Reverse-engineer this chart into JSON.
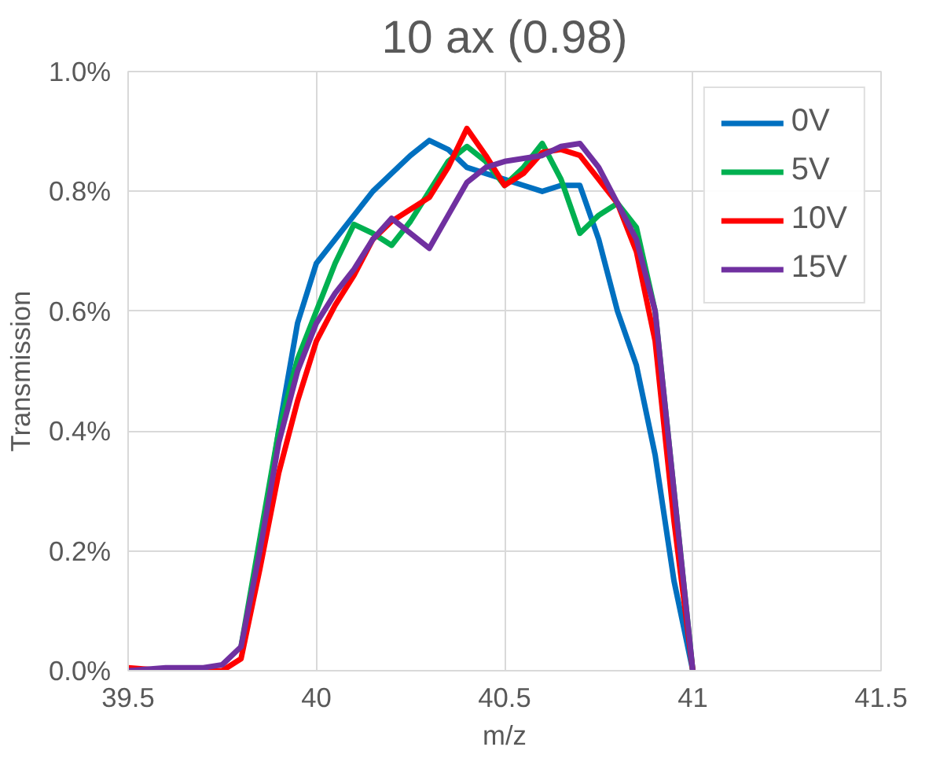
{
  "chart_data": {
    "type": "line",
    "title": "10 ax (0.98)",
    "xlabel": "m/z",
    "ylabel": "Transmission",
    "xlim": [
      39.5,
      41.5
    ],
    "xticks": [
      39.5,
      40,
      40.5,
      41,
      41.5
    ],
    "ylim": [
      0,
      1.0
    ],
    "yticks": [
      {
        "value": 0,
        "label": "0.0%"
      },
      {
        "value": 0.2,
        "label": "0.2%"
      },
      {
        "value": 0.4,
        "label": "0.4%"
      },
      {
        "value": 0.6,
        "label": "0.6%"
      },
      {
        "value": 0.8,
        "label": "0.8%"
      },
      {
        "value": 1.0,
        "label": "1.0%"
      }
    ],
    "grid": true,
    "legend": "top right",
    "marker": "none",
    "line_style": "solid",
    "x": [
      39.5,
      39.6,
      39.7,
      39.75,
      39.8,
      39.85,
      39.9,
      39.95,
      40,
      40.05,
      40.1,
      40.15,
      40.2,
      40.25,
      40.3,
      40.35,
      40.4,
      40.45,
      40.5,
      40.55,
      40.6,
      40.65,
      40.7,
      40.75,
      40.8,
      40.85,
      40.9,
      40.95,
      41
    ],
    "series": [
      {
        "name": "0V",
        "color": "#0070c0",
        "values": [
          null,
          null,
          null,
          null,
          null,
          0.2,
          0.4,
          0.58,
          0.68,
          0.72,
          0.76,
          0.8,
          0.83,
          0.86,
          0.885,
          0.87,
          0.84,
          0.83,
          0.82,
          0.81,
          0.8,
          0.81,
          0.81,
          0.72,
          0.6,
          0.51,
          0.36,
          0.15,
          0
        ]
      },
      {
        "name": "5V",
        "color": "#00b050",
        "values": [
          null,
          null,
          null,
          null,
          0.04,
          0.22,
          0.4,
          0.52,
          0.6,
          0.68,
          0.745,
          0.73,
          0.71,
          0.75,
          0.8,
          0.85,
          0.875,
          0.85,
          0.81,
          0.84,
          0.88,
          0.82,
          0.73,
          0.76,
          0.78,
          0.74,
          0.6,
          0.3,
          0
        ]
      },
      {
        "name": "10V",
        "color": "#ff0000",
        "values": [
          0.005,
          0,
          0,
          0,
          0.02,
          0.17,
          0.33,
          0.45,
          0.55,
          0.61,
          0.66,
          0.72,
          0.75,
          0.77,
          0.79,
          0.84,
          0.905,
          0.86,
          0.81,
          0.83,
          0.865,
          0.87,
          0.86,
          0.82,
          0.78,
          0.7,
          0.55,
          0.25,
          0
        ]
      },
      {
        "name": "15V",
        "color": "#7030a0",
        "values": [
          0,
          0.005,
          0.005,
          0.01,
          0.04,
          0.2,
          0.38,
          0.5,
          0.58,
          0.63,
          0.67,
          0.72,
          0.755,
          0.73,
          0.705,
          0.76,
          0.815,
          0.84,
          0.85,
          0.855,
          0.86,
          0.875,
          0.88,
          0.84,
          0.78,
          0.72,
          0.6,
          0.3,
          0
        ]
      }
    ]
  }
}
